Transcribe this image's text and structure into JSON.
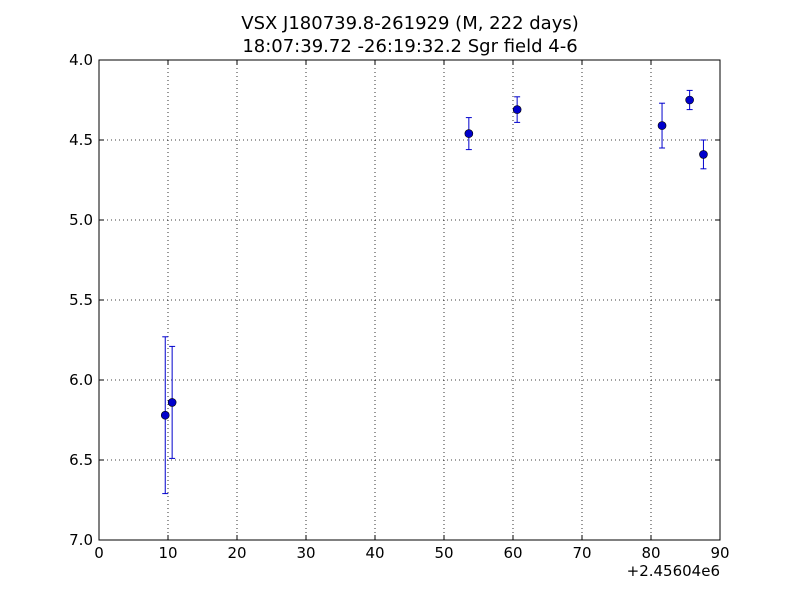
{
  "chart_data": {
    "type": "scatter",
    "title": "VSX J180739.8-261929 (M, 222 days)",
    "subtitle": "18:07:39.72 -26:19:32.2 Sgr field 4-6",
    "xlabel": "",
    "ylabel": "",
    "x_offset_label": "+2.45604e6",
    "xlim": [
      0,
      90
    ],
    "ylim": [
      7.0,
      4.0
    ],
    "y_inverted": true,
    "grid": true,
    "x_ticks": [
      "0",
      "10",
      "20",
      "30",
      "40",
      "50",
      "60",
      "70",
      "80",
      "90"
    ],
    "y_ticks": [
      "4.0",
      "4.5",
      "5.0",
      "5.5",
      "6.0",
      "6.5",
      "7.0"
    ],
    "series": [
      {
        "color": "#0000cc",
        "points": [
          {
            "x": 9.6,
            "y": 6.22,
            "err": 0.49
          },
          {
            "x": 10.6,
            "y": 6.14,
            "err": 0.35
          },
          {
            "x": 53.6,
            "y": 4.46,
            "err": 0.1
          },
          {
            "x": 60.6,
            "y": 4.31,
            "err": 0.08
          },
          {
            "x": 81.6,
            "y": 4.41,
            "err": 0.14
          },
          {
            "x": 85.6,
            "y": 4.25,
            "err": 0.06
          },
          {
            "x": 87.6,
            "y": 4.59,
            "err": 0.09
          }
        ]
      }
    ]
  }
}
